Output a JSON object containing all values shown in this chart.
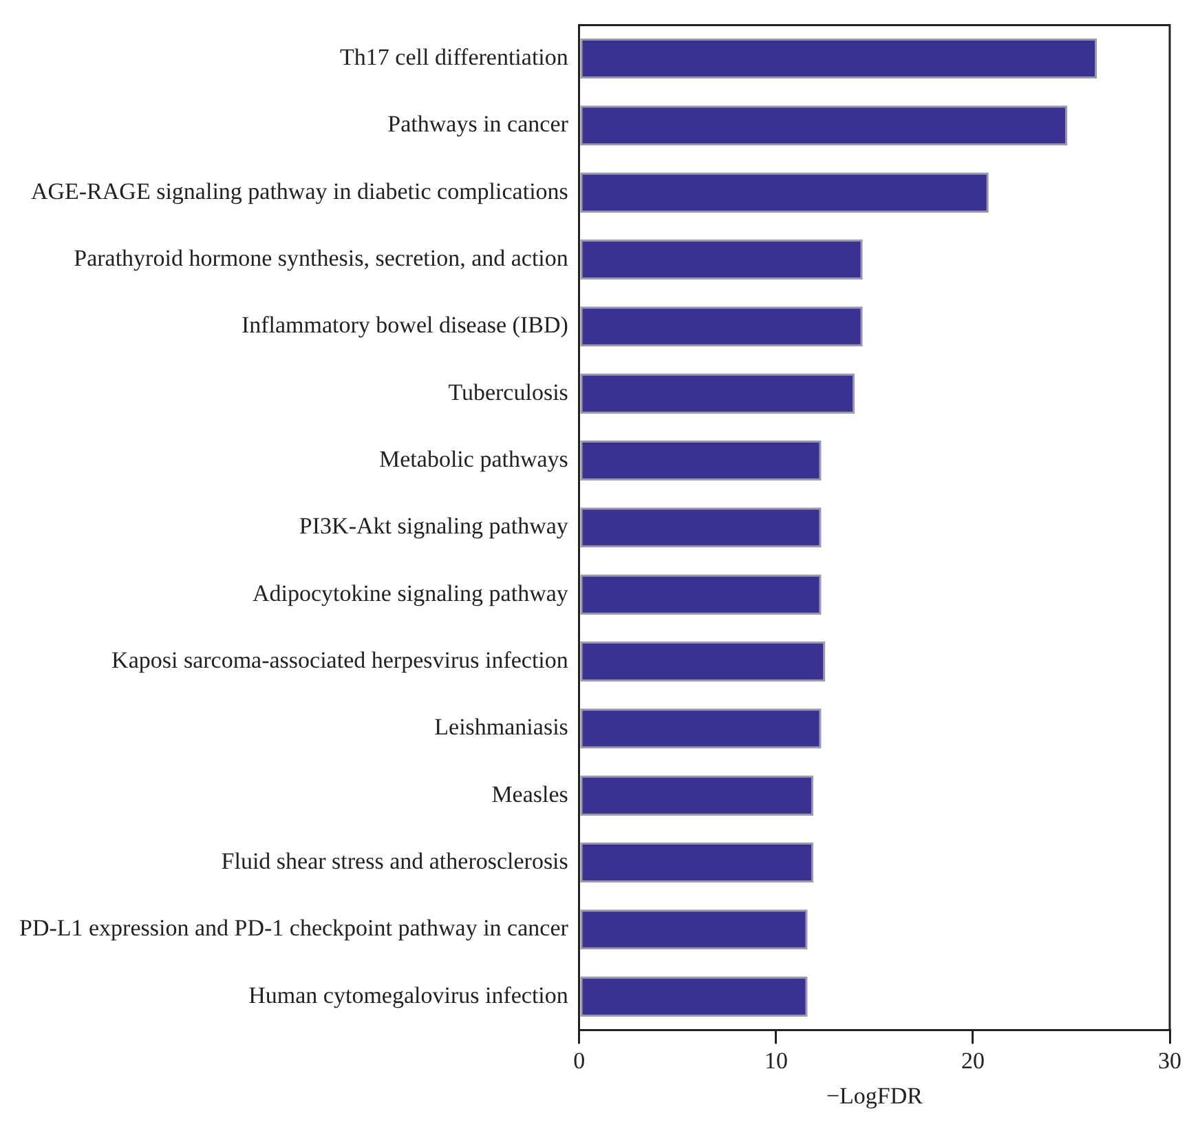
{
  "chart_data": {
    "type": "bar",
    "orientation": "horizontal",
    "xlabel": "−LogFDR",
    "categories": [
      "Th17 cell differentiation",
      "Pathways in cancer",
      "AGE-RAGE signaling pathway in diabetic complications",
      "Parathyroid hormone synthesis, secretion, and action",
      "Inflammatory bowel disease (IBD)",
      "Tuberculosis",
      "Metabolic pathways",
      "PI3K-Akt signaling pathway",
      "Adipocytokine signaling pathway",
      "Kaposi sarcoma-associated herpesvirus infection",
      "Leishmaniasis",
      "Measles",
      "Fluid shear stress and atherosclerosis",
      "PD-L1 expression and PD-1 checkpoint pathway in cancer",
      "Human cytomegalovirus infection"
    ],
    "values": [
      26.3,
      24.8,
      20.8,
      14.4,
      14.4,
      14.0,
      12.3,
      12.3,
      12.3,
      12.5,
      12.3,
      11.9,
      11.9,
      11.6,
      11.6
    ],
    "color": "#3a3190",
    "xlim": [
      0,
      30
    ],
    "xticks": [
      0,
      10,
      20,
      30
    ],
    "grid": false,
    "legend": false
  }
}
